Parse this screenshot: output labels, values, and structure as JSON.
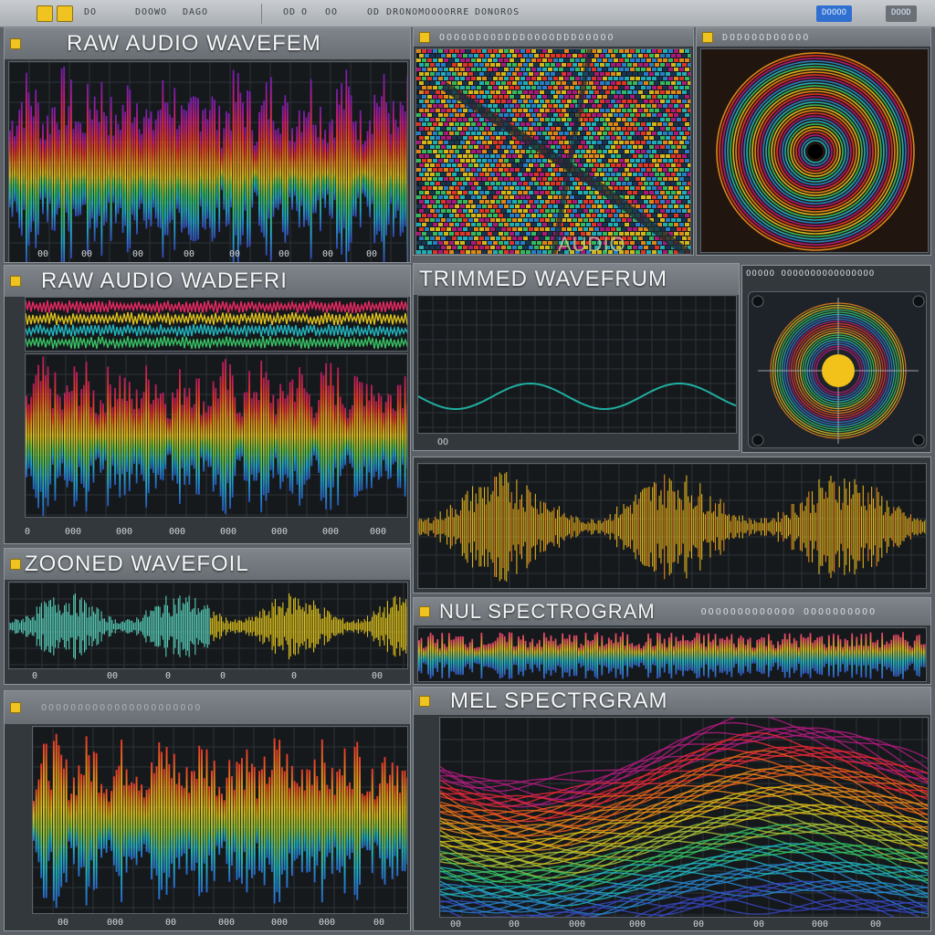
{
  "toolbar": {
    "labels": [
      "DO",
      "DOOWO",
      "DAGO",
      "OD",
      "O",
      "OO",
      "OD DRONOMOOOORRE",
      "DONOROS"
    ],
    "action_button": "DOOOO",
    "action_button_2": "DOOD"
  },
  "panels": {
    "raw_top": {
      "title": "RAW  AUDIO WAVEFEM",
      "ticks": [
        "00",
        "00",
        "00",
        "00",
        "00",
        "00",
        "00",
        "00"
      ]
    },
    "audio_3d": {
      "title": "OOOOODOODDDDOOOODDDOOOOO",
      "overlay": "AUDIO"
    },
    "radial_top": {
      "title": "DODOOODOOOOO"
    },
    "raw_mid": {
      "title": "RAW AUDIO WADEFRI",
      "ticks": [
        "0",
        "000",
        "000",
        "000",
        "000",
        "000",
        "000",
        "000"
      ]
    },
    "trimmed": {
      "title": "TRIMMED WAVEFRUM",
      "footer": "OO"
    },
    "radial_mid": {
      "title": "OOOOO OOOOOOOOOOOOOOOO"
    },
    "trimmed_2": {
      "title": ""
    },
    "zoomed": {
      "title": "ZOONED WAVEFOIL",
      "ticks": [
        "0",
        "00",
        "0",
        "0",
        "0",
        "00"
      ]
    },
    "mel_small": {
      "title": "NUL SPECTROGRAM",
      "subtitle": "OOOOOOOOOOOOO OOOOOOOOOO"
    },
    "bottom_left": {
      "title": "OOOOOOOOOOOOOOOOOOOOOO",
      "ticks": [
        "00",
        "000",
        "00",
        "000",
        "000",
        "000",
        "00"
      ]
    },
    "mel_big": {
      "title": "MEL SPECTRGRAM",
      "ticks": [
        "00",
        "00",
        "000",
        "000",
        "00",
        "00",
        "000",
        "00"
      ]
    }
  },
  "colors": {
    "spectrum": [
      "#5a2bd0",
      "#2a7fff",
      "#22d3e0",
      "#3bd46b",
      "#f2d21b",
      "#ff8a1a",
      "#ff2a3a",
      "#e21b8a"
    ],
    "accent": "#f0c420",
    "panel_bg": "#33383d",
    "plot_bg": "#16191c"
  },
  "icons": [
    "pin-icon",
    "toolbar-button-icon"
  ]
}
